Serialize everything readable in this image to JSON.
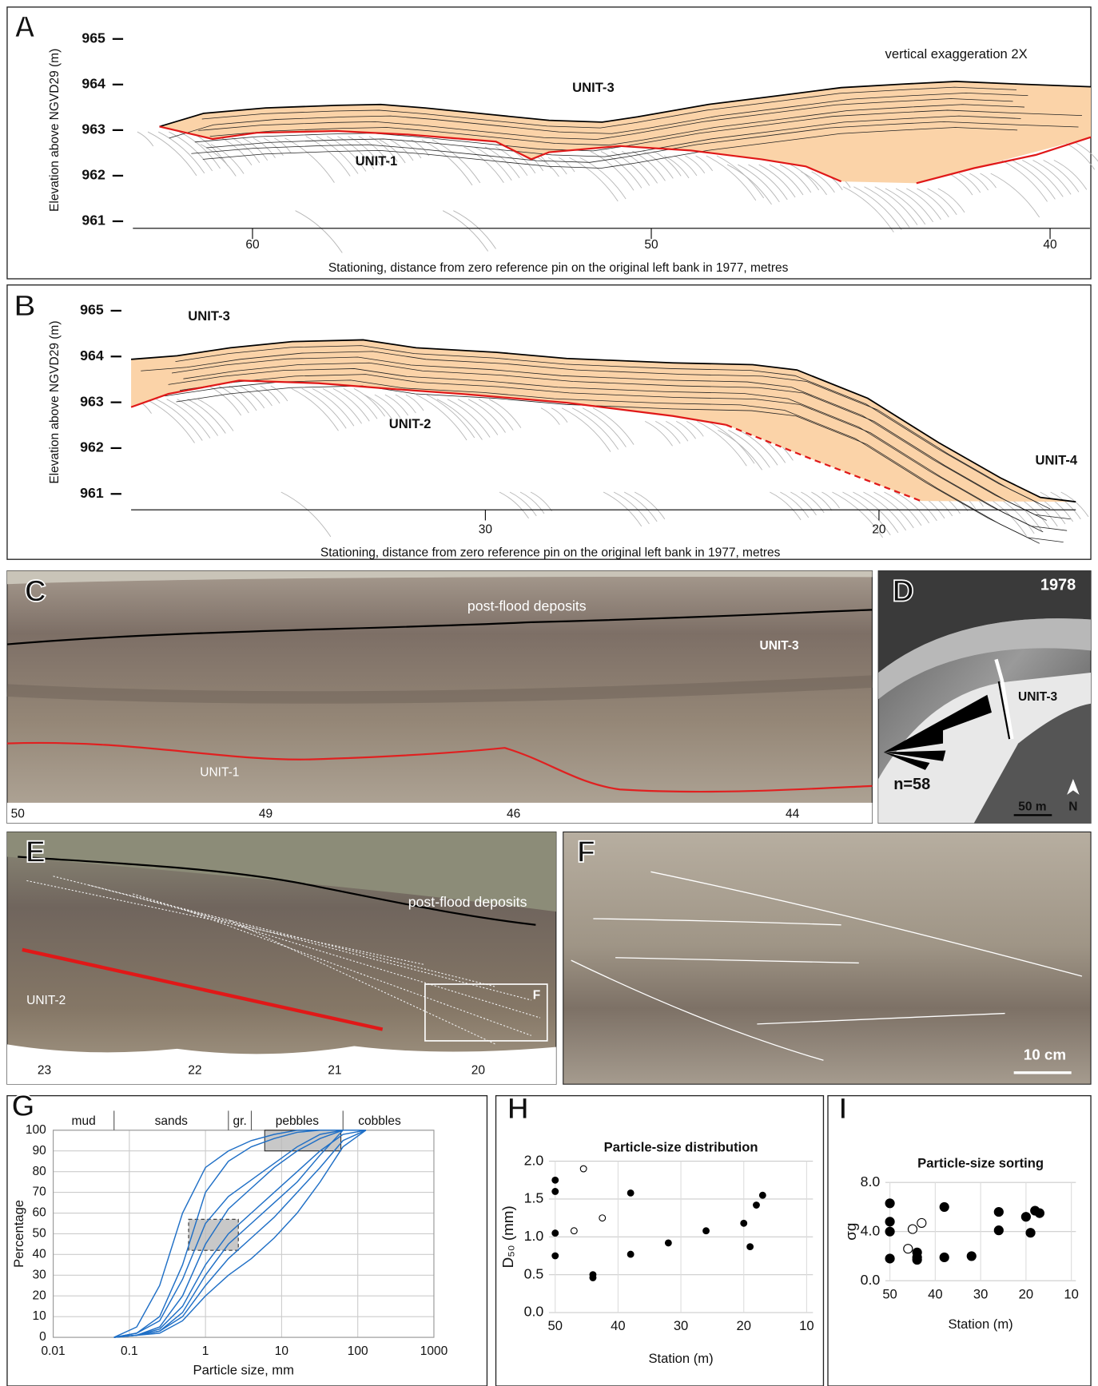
{
  "chart_data": [
    {
      "type": "section",
      "panel": "A",
      "y_label": "Elevation above NGVD29 (m)",
      "x_label": "Stationing, distance from zero reference pin on the original left bank in 1977, metres",
      "ylim": [
        960.8,
        965.2
      ],
      "yticks": [
        961,
        962,
        963,
        964,
        965
      ],
      "xlim": [
        63,
        39
      ],
      "xticks": [
        60,
        50,
        40
      ],
      "annotations": [
        "UNIT-3",
        "UNIT-1",
        "vertical exaggeration 2X"
      ]
    },
    {
      "type": "section",
      "panel": "B",
      "y_label": "Elevation above NGVD29 (m)",
      "x_label": "Stationing, distance from zero reference pin on the original left bank in 1977, metres",
      "ylim": [
        960.8,
        965.2
      ],
      "yticks": [
        961,
        962,
        963,
        964,
        965
      ],
      "xlim": [
        39,
        15
      ],
      "xticks": [
        30,
        20
      ],
      "annotations": [
        "UNIT-3",
        "UNIT-2",
        "UNIT-4"
      ]
    },
    {
      "type": "line",
      "panel": "G",
      "y_label": "Percentage",
      "x_label": "Particle size, mm",
      "log_x": true,
      "grid": true,
      "xlim": [
        0.01,
        1000
      ],
      "xticks": [
        0.01,
        0.1,
        1,
        10,
        100,
        1000
      ],
      "ylim": [
        0,
        100
      ],
      "yticks": [
        0,
        10,
        20,
        30,
        40,
        50,
        60,
        70,
        80,
        90,
        100
      ],
      "size_classes": [
        "mud",
        "sands",
        "gr.",
        "pebbles",
        "cobbles"
      ],
      "class_bounds": [
        0.063,
        2,
        4,
        64
      ],
      "x": [
        0.063,
        0.125,
        0.25,
        0.5,
        1,
        2,
        4,
        8,
        16,
        32,
        64,
        128
      ],
      "series": [
        {
          "color": "#1f6fc6",
          "values": [
            0,
            2,
            10,
            35,
            70,
            85,
            92,
            96,
            99,
            100,
            100,
            100
          ]
        },
        {
          "color": "#1f6fc6",
          "values": [
            0,
            1,
            5,
            20,
            45,
            62,
            72,
            82,
            90,
            96,
            100,
            100
          ]
        },
        {
          "color": "#1f6fc6",
          "values": [
            0,
            1,
            4,
            15,
            35,
            50,
            60,
            70,
            80,
            90,
            98,
            100
          ]
        },
        {
          "color": "#1f6fc6",
          "values": [
            0,
            1,
            3,
            10,
            25,
            38,
            48,
            58,
            70,
            82,
            95,
            100
          ]
        },
        {
          "color": "#1f6fc6",
          "values": [
            0,
            5,
            25,
            60,
            82,
            90,
            95,
            98,
            100,
            100,
            100,
            100
          ]
        },
        {
          "color": "#1f6fc6",
          "values": [
            0,
            1,
            3,
            12,
            30,
            45,
            55,
            65,
            75,
            88,
            100,
            100
          ]
        },
        {
          "color": "#1f6fc6",
          "values": [
            0,
            1,
            2,
            8,
            20,
            30,
            38,
            48,
            60,
            75,
            92,
            100
          ]
        },
        {
          "color": "#1f6fc6",
          "values": [
            0,
            2,
            8,
            28,
            55,
            68,
            76,
            84,
            92,
            98,
            100,
            100
          ]
        }
      ]
    },
    {
      "type": "scatter",
      "panel": "H",
      "title": "Particle-size distribution",
      "y_label": "D₅₀ (mm)",
      "x_label": "Station (m)",
      "grid": true,
      "xlim": [
        51,
        9
      ],
      "xticks": [
        50,
        40,
        30,
        20,
        10
      ],
      "ylim": [
        0,
        2
      ],
      "yticks": [
        {
          "value": 0,
          "label": "0.0"
        },
        {
          "value": 0.5,
          "label": "0.5"
        },
        {
          "value": 1,
          "label": "1.0"
        },
        {
          "value": 1.5,
          "label": "1.5"
        },
        {
          "value": 2,
          "label": "2.0"
        }
      ],
      "series": [
        {
          "color": "#000000",
          "marker": "filled",
          "x": [
            50,
            50,
            50,
            50,
            44,
            44,
            38,
            38,
            32,
            26,
            20,
            19,
            18,
            17
          ],
          "values": [
            1.75,
            1.6,
            1.05,
            0.75,
            0.5,
            0.46,
            1.58,
            0.77,
            0.92,
            1.08,
            1.18,
            0.87,
            1.42,
            1.55
          ]
        },
        {
          "color": "#000000",
          "marker": "open",
          "x": [
            45.5,
            47,
            42.5
          ],
          "values": [
            1.9,
            1.08,
            1.25
          ]
        }
      ]
    },
    {
      "type": "scatter",
      "panel": "I",
      "title": "Particle-size sorting",
      "y_label": "σg",
      "x_label": "Station (m)",
      "grid": true,
      "xlim": [
        51,
        9
      ],
      "xticks": [
        50,
        40,
        30,
        20,
        10
      ],
      "ylim": [
        0,
        8
      ],
      "yticks": [
        {
          "value": 0,
          "label": "0.0"
        },
        {
          "value": 4,
          "label": "4.0"
        },
        {
          "value": 8,
          "label": "8.0"
        }
      ],
      "series": [
        {
          "color": "#000000",
          "marker": "filled",
          "x": [
            50,
            50,
            50,
            50,
            44,
            44,
            44,
            38,
            38,
            32,
            26,
            26,
            20,
            19,
            18,
            17
          ],
          "values": [
            6.3,
            4.8,
            4.0,
            1.8,
            2.3,
            1.9,
            1.7,
            6.0,
            1.9,
            2.0,
            5.6,
            4.1,
            5.2,
            3.9,
            5.7,
            5.5
          ]
        },
        {
          "color": "#000000",
          "marker": "open",
          "x": [
            46,
            45,
            43
          ],
          "values": [
            2.6,
            4.2,
            4.7
          ]
        }
      ]
    }
  ],
  "photos": [
    {
      "panel": "C",
      "labels": [
        "post-flood deposits",
        "UNIT-3",
        "UNIT-1"
      ],
      "ticks": [
        50,
        49,
        46,
        44
      ]
    },
    {
      "panel": "D",
      "labels": [
        "1978",
        "UNIT-3",
        "n=58",
        "50 m",
        "N"
      ]
    },
    {
      "panel": "E",
      "labels": [
        "post-flood deposits",
        "UNIT-2",
        "F"
      ],
      "ticks": [
        23,
        22,
        21,
        20
      ]
    },
    {
      "panel": "F",
      "labels": [
        "10 cm"
      ]
    }
  ]
}
